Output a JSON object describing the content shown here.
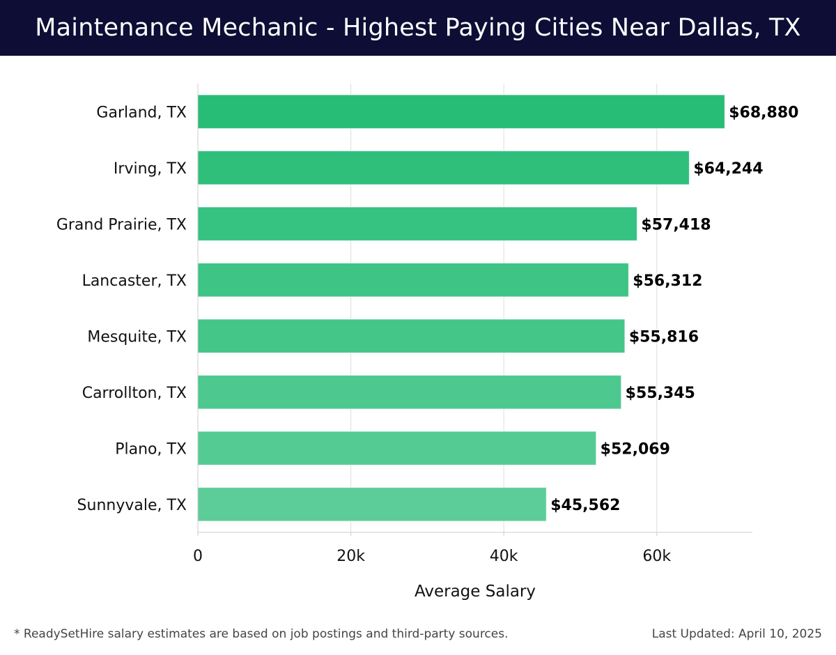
{
  "header": {
    "title": "Maintenance Mechanic - Highest Paying Cities Near Dallas, TX"
  },
  "footer": {
    "note": "* ReadySetHire salary estimates are based on job postings and third-party sources.",
    "updated": "Last Updated: April 10, 2025"
  },
  "colors": {
    "header_bg": "#0d0d35",
    "bar_dark": "#27bd76",
    "bar_light": "#5ccd98",
    "gridline": "#dddddd"
  },
  "chart_data": {
    "type": "bar",
    "orientation": "horizontal",
    "title": "Maintenance Mechanic - Highest Paying Cities Near Dallas, TX",
    "xlabel": "Average Salary",
    "ylabel": "",
    "categories": [
      "Garland, TX",
      "Irving, TX",
      "Grand Prairie, TX",
      "Lancaster, TX",
      "Mesquite, TX",
      "Carrollton, TX",
      "Plano, TX",
      "Sunnyvale, TX"
    ],
    "values": [
      68880,
      64244,
      57418,
      56312,
      55816,
      55345,
      52069,
      45562
    ],
    "value_labels": [
      "$68,880",
      "$64,244",
      "$57,418",
      "$56,312",
      "$55,816",
      "$55,345",
      "$52,069",
      "$45,562"
    ],
    "xlim": [
      0,
      72500
    ],
    "xticks": [
      0,
      20000,
      40000,
      60000
    ],
    "xtick_labels": [
      "0",
      "20k",
      "40k",
      "60k"
    ],
    "grid": true,
    "legend": "none"
  }
}
